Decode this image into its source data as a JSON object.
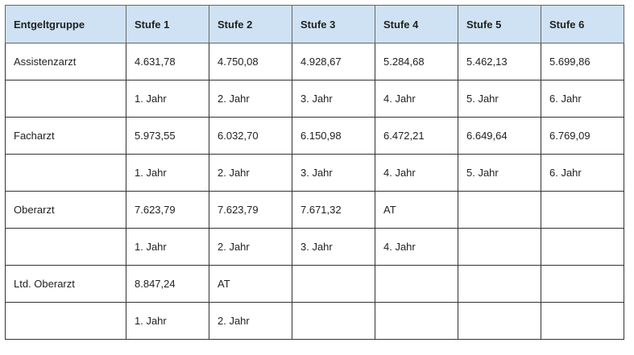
{
  "table": {
    "header_bg": "#cfe2f3",
    "headers": [
      "Entgeltgruppe",
      "Stufe 1",
      "Stufe 2",
      "Stufe 3",
      "Stufe 4",
      "Stufe 5",
      "Stufe 6"
    ],
    "rows": [
      [
        "Assistenzarzt",
        "4.631,78",
        "4.750,08",
        "4.928,67",
        "5.284,68",
        "5.462,13",
        "5.699,86"
      ],
      [
        "",
        "1. Jahr",
        "2. Jahr",
        "3. Jahr",
        "4. Jahr",
        "5. Jahr",
        "6. Jahr"
      ],
      [
        "Facharzt",
        "5.973,55",
        "6.032,70",
        "6.150,98",
        "6.472,21",
        "6.649,64",
        "6.769,09"
      ],
      [
        "",
        "1. Jahr",
        "2. Jahr",
        "3. Jahr",
        "4. Jahr",
        "5. Jahr",
        "6. Jahr"
      ],
      [
        "Oberarzt",
        "7.623,79",
        "7.623,79",
        "7.671,32",
        "AT",
        "",
        ""
      ],
      [
        "",
        "1. Jahr",
        "2. Jahr",
        "3. Jahr",
        "4. Jahr",
        "",
        ""
      ],
      [
        "Ltd. Oberarzt",
        "8.847,24",
        "AT",
        "",
        "",
        "",
        ""
      ],
      [
        "",
        "1. Jahr",
        "2. Jahr",
        "",
        "",
        "",
        ""
      ]
    ]
  }
}
